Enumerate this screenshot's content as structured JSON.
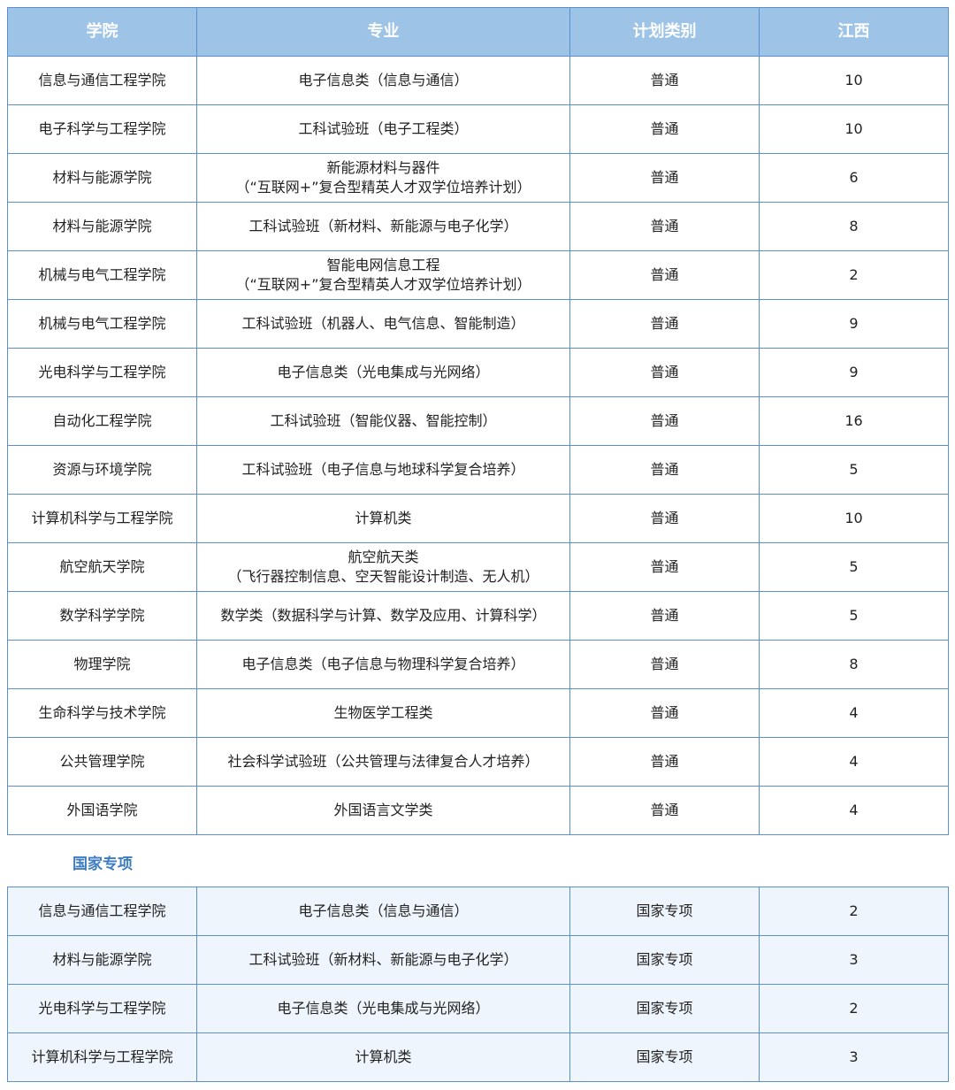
{
  "headers": [
    "学院",
    "专业",
    "计划类别",
    "江西"
  ],
  "rows": [
    [
      "信息与通信工程学院",
      "电子信息类（信息与通信）",
      "普通",
      "10"
    ],
    [
      "电子科学与工程学院",
      "工科试验班（电子工程类）",
      "普通",
      "10"
    ],
    [
      "材料与能源学院",
      "新能源材料与器件\n（“互联网+”复合型精英人才双学位培养计划）",
      "普通",
      "6"
    ],
    [
      "材料与能源学院",
      "工科试验班（新材料、新能源与电子化学）",
      "普通",
      "8"
    ],
    [
      "机械与电气工程学院",
      "智能电网信息工程\n（“互联网+”复合型精英人才双学位培养计划）",
      "普通",
      "2"
    ],
    [
      "机械与电气工程学院",
      "工科试验班（机器人、电气信息、智能制造）",
      "普通",
      "9"
    ],
    [
      "光电科学与工程学院",
      "电子信息类（光电集成与光网络）",
      "普通",
      "9"
    ],
    [
      "自动化工程学院",
      "工科试验班（智能仪器、智能控制）",
      "普通",
      "16"
    ],
    [
      "资源与环境学院",
      "工科试验班（电子信息与地球科学复合培养）",
      "普通",
      "5"
    ],
    [
      "计算机科学与工程学院",
      "计算机类",
      "普通",
      "10"
    ],
    [
      "航空航天学院",
      "航空航天类\n（飞行器控制信息、空天智能设计制造、无人机）",
      "普通",
      "5"
    ],
    [
      "数学科学学院",
      "数学类（数据科学与计算、数学及应用、计算科学）",
      "普通",
      "5"
    ],
    [
      "物理学院",
      "电子信息类（电子信息与物理科学复合培养）",
      "普通",
      "8"
    ],
    [
      "生命科学与技术学院",
      "生物医学工程类",
      "普通",
      "4"
    ],
    [
      "公共管理学院",
      "社会科学试验班（公共管理与法律复合人才培养）",
      "普通",
      "4"
    ],
    [
      "外国语学院",
      "外国语言文学类",
      "普通",
      "4"
    ]
  ],
  "section_title": "国家专项",
  "special_rows": [
    [
      "信息与通信工程学院",
      "电子信息类（信息与通信）",
      "国家专项",
      "2"
    ],
    [
      "材料与能源学院",
      "工科试验班（新材料、新能源与电子化学）",
      "国家专项",
      "3"
    ],
    [
      "光电科学与工程学院",
      "电子信息类（光电集成与光网络）",
      "国家专项",
      "2"
    ],
    [
      "计算机科学与工程学院",
      "计算机类",
      "国家专项",
      "3"
    ]
  ],
  "colors": {
    "header_bg": "#9dc3e6",
    "border": "#5b8fd0",
    "section_title": "#3d7cc0",
    "special_bg": "#eef5fc"
  }
}
